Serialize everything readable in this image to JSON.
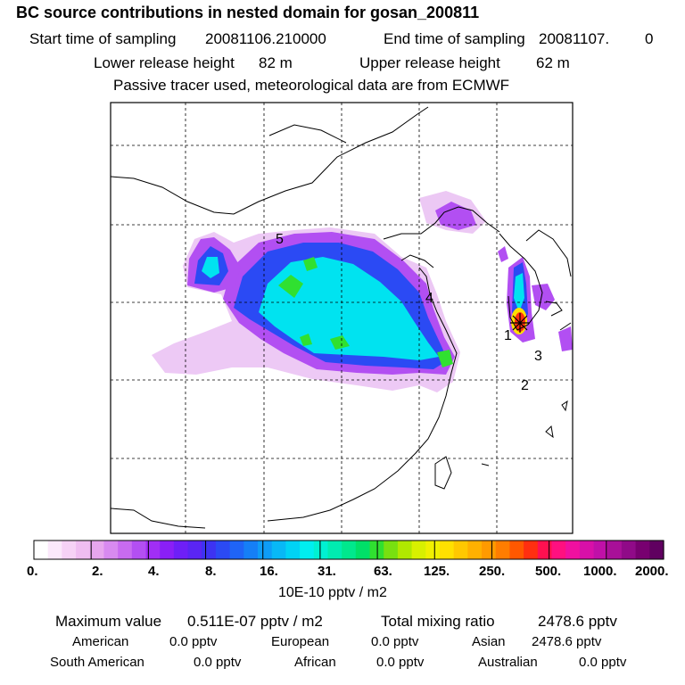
{
  "title": "BC  source contributions in nested domain for gosan_200811",
  "header": {
    "start_label": "Start time of sampling",
    "start_value": "20081106.210000",
    "end_label": "End time of sampling",
    "end_value": "20081107.",
    "end_suffix": "0",
    "lower_label": "Lower release height",
    "lower_value": "82 m",
    "upper_label": "Upper release height",
    "upper_value": "62 m",
    "tracer_note": "Passive tracer used, meteorological data are from ECMWF"
  },
  "map": {
    "markers": [
      "1",
      "2",
      "3",
      "4",
      "5"
    ],
    "colors": {
      "land_outline": "#000000",
      "grid": "#000000"
    }
  },
  "colorbar": {
    "colors": [
      "#ffffff",
      "#fbe8fb",
      "#f6d2f6",
      "#efbdf1",
      "#e7a6ee",
      "#d88af0",
      "#c86bf0",
      "#b34ff2",
      "#a12ef5",
      "#8a1ff7",
      "#6e1ff7",
      "#5a25f4",
      "#3d33f2",
      "#2b4af4",
      "#1f64f7",
      "#157ff7",
      "#0e9cf7",
      "#08b8f6",
      "#00d3f5",
      "#00eef0",
      "#00f0d2",
      "#00ecb0",
      "#00e88d",
      "#00e068",
      "#30e030",
      "#78e010",
      "#b0e800",
      "#d8f000",
      "#f0f000",
      "#ffe000",
      "#ffc800",
      "#ffb000",
      "#ff9a00",
      "#ff7d00",
      "#ff5800",
      "#ff2f10",
      "#ff1050",
      "#ff1080",
      "#f010a0",
      "#d810a8",
      "#c010a8",
      "#a81098",
      "#900a88",
      "#780070",
      "#600060"
    ],
    "ticks": [
      "0.",
      "2.",
      "4.",
      "8.",
      "16.",
      "31.",
      "63.",
      "125.",
      "250.",
      "500.",
      "1000.",
      "2000."
    ],
    "units": "10E-10 pptv / m2"
  },
  "summary": {
    "max_label": "Maximum value",
    "max_value": "0.511E-07 pptv / m2",
    "total_label": "Total mixing ratio",
    "total_value": "2478.6 pptv",
    "sources": [
      {
        "name": "American",
        "value": "0.0 pptv"
      },
      {
        "name": "European",
        "value": "0.0 pptv"
      },
      {
        "name": "Asian",
        "value": "2478.6 pptv"
      },
      {
        "name": "South American",
        "value": "0.0 pptv"
      },
      {
        "name": "African",
        "value": "0.0 pptv"
      },
      {
        "name": "Australian",
        "value": "0.0 pptv"
      }
    ]
  }
}
